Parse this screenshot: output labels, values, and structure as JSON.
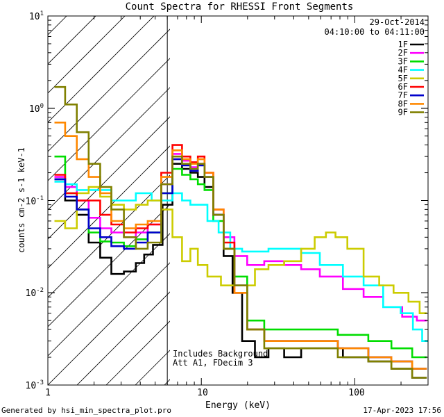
{
  "title": "Count Spectra for RHESSI Front Segments",
  "date": "29-Oct-2014",
  "time_range": "04:10:00 to 04:11:00",
  "footer_left": "Generated by hsi_min_spectra_plot.pro",
  "footer_right": "17-Apr-2023 17:56",
  "annotation_line1": "Includes Background",
  "annotation_line2": "Att A1, FDecim 3",
  "chart_data": {
    "type": "line",
    "title": "Count Spectra for RHESSI Front Segments",
    "xlabel": "Energy (keV)",
    "ylabel": "counts cm-2 s-1 keV-1",
    "xscale": "log",
    "yscale": "log",
    "xlim": [
      1,
      300
    ],
    "ylim": [
      0.001,
      10
    ],
    "x_tick_labels": [
      {
        "value": 1,
        "label": "1"
      },
      {
        "value": 10,
        "label": "10"
      },
      {
        "value": 100,
        "label": "100"
      }
    ],
    "y_tick_labels": [
      {
        "value": 0.001,
        "base": "10",
        "exp": "-3"
      },
      {
        "value": 0.01,
        "base": "10",
        "exp": "-2"
      },
      {
        "value": 0.1,
        "base": "10",
        "exp": "-1"
      },
      {
        "value": 1,
        "base": "10",
        "exp": "0"
      },
      {
        "value": 10,
        "base": "10",
        "exp": "1"
      }
    ],
    "excluded_region": {
      "from": 1,
      "to": 6,
      "style": "hatched"
    },
    "legend_position": "top-right",
    "series": [
      {
        "name": "1F",
        "color": "#000000",
        "points": [
          [
            1.2,
            0.17
          ],
          [
            1.4,
            0.1
          ],
          [
            1.7,
            0.07
          ],
          [
            2.0,
            0.035
          ],
          [
            2.4,
            0.024
          ],
          [
            2.8,
            0.016
          ],
          [
            3.5,
            0.017
          ],
          [
            4.0,
            0.021
          ],
          [
            4.5,
            0.026
          ],
          [
            5.2,
            0.033
          ],
          [
            6.0,
            0.09
          ],
          [
            7.0,
            0.25
          ],
          [
            8.0,
            0.22
          ],
          [
            9.0,
            0.2
          ],
          [
            10.0,
            0.18
          ],
          [
            11.0,
            0.14
          ],
          [
            13.0,
            0.07
          ],
          [
            15.0,
            0.025
          ],
          [
            17.0,
            0.01
          ],
          [
            20.0,
            0.003
          ],
          [
            25.0,
            0.002
          ],
          [
            30.0,
            0.0025
          ],
          [
            40.0,
            0.002
          ],
          [
            50.0,
            0.0025
          ],
          [
            70.0,
            0.0025
          ],
          [
            100.0,
            0.002
          ],
          [
            150.0,
            0.0018
          ],
          [
            200.0,
            0.0015
          ],
          [
            280.0,
            0.0012
          ]
        ]
      },
      {
        "name": "2F",
        "color": "#ff00ff",
        "points": [
          [
            1.2,
            0.18
          ],
          [
            1.4,
            0.14
          ],
          [
            1.7,
            0.1
          ],
          [
            2.0,
            0.065
          ],
          [
            2.4,
            0.05
          ],
          [
            2.8,
            0.045
          ],
          [
            3.5,
            0.04
          ],
          [
            4.0,
            0.045
          ],
          [
            5.0,
            0.055
          ],
          [
            6.0,
            0.15
          ],
          [
            7.0,
            0.32
          ],
          [
            8.0,
            0.27
          ],
          [
            9.0,
            0.23
          ],
          [
            10.0,
            0.25
          ],
          [
            11.0,
            0.2
          ],
          [
            13.0,
            0.08
          ],
          [
            15.0,
            0.04
          ],
          [
            18.0,
            0.025
          ],
          [
            22.0,
            0.02
          ],
          [
            30.0,
            0.022
          ],
          [
            40.0,
            0.02
          ],
          [
            50.0,
            0.018
          ],
          [
            70.0,
            0.015
          ],
          [
            100.0,
            0.011
          ],
          [
            130.0,
            0.009
          ],
          [
            180.0,
            0.007
          ],
          [
            230.0,
            0.0055
          ],
          [
            280.0,
            0.005
          ]
        ]
      },
      {
        "name": "3F",
        "color": "#00dd00",
        "points": [
          [
            1.2,
            0.3
          ],
          [
            1.4,
            0.12
          ],
          [
            1.7,
            0.08
          ],
          [
            2.0,
            0.045
          ],
          [
            2.4,
            0.036
          ],
          [
            2.8,
            0.035
          ],
          [
            3.5,
            0.032
          ],
          [
            4.0,
            0.038
          ],
          [
            5.0,
            0.045
          ],
          [
            6.0,
            0.12
          ],
          [
            7.0,
            0.22
          ],
          [
            8.0,
            0.19
          ],
          [
            9.0,
            0.17
          ],
          [
            10.0,
            0.15
          ],
          [
            11.0,
            0.13
          ],
          [
            13.0,
            0.06
          ],
          [
            15.0,
            0.03
          ],
          [
            18.0,
            0.015
          ],
          [
            22.0,
            0.005
          ],
          [
            30.0,
            0.004
          ],
          [
            40.0,
            0.004
          ],
          [
            60.0,
            0.004
          ],
          [
            100.0,
            0.0035
          ],
          [
            150.0,
            0.003
          ],
          [
            200.0,
            0.0025
          ],
          [
            280.0,
            0.002
          ]
        ]
      },
      {
        "name": "4F",
        "color": "#00ffff",
        "points": [
          [
            1.2,
            0.16
          ],
          [
            1.4,
            0.15
          ],
          [
            1.7,
            0.13
          ],
          [
            2.0,
            0.13
          ],
          [
            2.4,
            0.13
          ],
          [
            2.8,
            0.1
          ],
          [
            3.5,
            0.1
          ],
          [
            4.0,
            0.12
          ],
          [
            4.5,
            0.12
          ],
          [
            5.0,
            0.1
          ],
          [
            6.0,
            0.1
          ],
          [
            7.0,
            0.12
          ],
          [
            8.0,
            0.1
          ],
          [
            9.0,
            0.09
          ],
          [
            10.0,
            0.09
          ],
          [
            12.0,
            0.06
          ],
          [
            14.0,
            0.045
          ],
          [
            17.0,
            0.03
          ],
          [
            20.0,
            0.028
          ],
          [
            25.0,
            0.028
          ],
          [
            30.0,
            0.03
          ],
          [
            40.0,
            0.03
          ],
          [
            50.0,
            0.027
          ],
          [
            70.0,
            0.02
          ],
          [
            100.0,
            0.015
          ],
          [
            130.0,
            0.012
          ],
          [
            180.0,
            0.007
          ],
          [
            220.0,
            0.006
          ],
          [
            260.0,
            0.004
          ],
          [
            290.0,
            0.003
          ]
        ]
      },
      {
        "name": "5F",
        "color": "#cccc00",
        "points": [
          [
            1.2,
            0.06
          ],
          [
            1.4,
            0.05
          ],
          [
            1.7,
            0.12
          ],
          [
            2.0,
            0.14
          ],
          [
            2.4,
            0.11
          ],
          [
            2.8,
            0.09
          ],
          [
            3.5,
            0.08
          ],
          [
            4.0,
            0.09
          ],
          [
            5.0,
            0.1
          ],
          [
            6.0,
            0.08
          ],
          [
            7.0,
            0.04
          ],
          [
            8.0,
            0.022
          ],
          [
            9.0,
            0.03
          ],
          [
            10.0,
            0.02
          ],
          [
            12.0,
            0.015
          ],
          [
            15.0,
            0.012
          ],
          [
            20.0,
            0.012
          ],
          [
            25.0,
            0.018
          ],
          [
            30.0,
            0.02
          ],
          [
            40.0,
            0.022
          ],
          [
            50.0,
            0.03
          ],
          [
            60.0,
            0.04
          ],
          [
            70.0,
            0.045
          ],
          [
            80.0,
            0.04
          ],
          [
            100.0,
            0.03
          ],
          [
            130.0,
            0.015
          ],
          [
            160.0,
            0.012
          ],
          [
            200.0,
            0.01
          ],
          [
            250.0,
            0.008
          ],
          [
            280.0,
            0.006
          ]
        ]
      },
      {
        "name": "6F",
        "color": "#ff0000",
        "points": [
          [
            1.2,
            0.19
          ],
          [
            1.4,
            0.12
          ],
          [
            1.7,
            0.1
          ],
          [
            2.0,
            0.1
          ],
          [
            2.4,
            0.07
          ],
          [
            2.8,
            0.055
          ],
          [
            3.5,
            0.045
          ],
          [
            4.0,
            0.05
          ],
          [
            5.0,
            0.055
          ],
          [
            6.0,
            0.2
          ],
          [
            7.0,
            0.4
          ],
          [
            8.0,
            0.3
          ],
          [
            9.0,
            0.26
          ],
          [
            10.0,
            0.3
          ],
          [
            11.0,
            0.2
          ],
          [
            13.0,
            0.08
          ],
          [
            15.0,
            0.035
          ],
          [
            18.0,
            0.01
          ],
          [
            22.0,
            0.004
          ],
          [
            30.0,
            0.003
          ],
          [
            40.0,
            0.003
          ],
          [
            60.0,
            0.003
          ],
          [
            100.0,
            0.0025
          ],
          [
            150.0,
            0.002
          ],
          [
            200.0,
            0.0018
          ],
          [
            280.0,
            0.0015
          ]
        ]
      },
      {
        "name": "7F",
        "color": "#0000cc",
        "points": [
          [
            1.2,
            0.17
          ],
          [
            1.4,
            0.11
          ],
          [
            1.7,
            0.08
          ],
          [
            2.0,
            0.05
          ],
          [
            2.4,
            0.04
          ],
          [
            2.8,
            0.032
          ],
          [
            3.5,
            0.03
          ],
          [
            4.0,
            0.035
          ],
          [
            5.0,
            0.045
          ],
          [
            6.0,
            0.12
          ],
          [
            7.0,
            0.28
          ],
          [
            8.0,
            0.24
          ],
          [
            9.0,
            0.21
          ],
          [
            10.0,
            0.24
          ],
          [
            11.0,
            0.18
          ],
          [
            13.0,
            0.07
          ],
          [
            15.0,
            0.03
          ],
          [
            18.0,
            0.012
          ],
          [
            22.0,
            0.004
          ],
          [
            30.0,
            0.003
          ],
          [
            40.0,
            0.003
          ],
          [
            60.0,
            0.003
          ],
          [
            100.0,
            0.0025
          ],
          [
            150.0,
            0.002
          ],
          [
            200.0,
            0.0018
          ],
          [
            280.0,
            0.0015
          ]
        ]
      },
      {
        "name": "8F",
        "color": "#ff8800",
        "points": [
          [
            1.2,
            0.7
          ],
          [
            1.4,
            0.5
          ],
          [
            1.7,
            0.28
          ],
          [
            2.0,
            0.18
          ],
          [
            2.4,
            0.12
          ],
          [
            2.8,
            0.06
          ],
          [
            3.5,
            0.05
          ],
          [
            4.0,
            0.055
          ],
          [
            5.0,
            0.06
          ],
          [
            6.0,
            0.18
          ],
          [
            7.0,
            0.35
          ],
          [
            8.0,
            0.28
          ],
          [
            9.0,
            0.25
          ],
          [
            10.0,
            0.28
          ],
          [
            11.0,
            0.2
          ],
          [
            13.0,
            0.08
          ],
          [
            15.0,
            0.03
          ],
          [
            18.0,
            0.01
          ],
          [
            22.0,
            0.004
          ],
          [
            30.0,
            0.003
          ],
          [
            40.0,
            0.003
          ],
          [
            60.0,
            0.003
          ],
          [
            100.0,
            0.0025
          ],
          [
            150.0,
            0.002
          ],
          [
            200.0,
            0.0018
          ],
          [
            280.0,
            0.0015
          ]
        ]
      },
      {
        "name": "9F",
        "color": "#808000",
        "points": [
          [
            1.2,
            1.7
          ],
          [
            1.4,
            1.1
          ],
          [
            1.7,
            0.55
          ],
          [
            2.0,
            0.25
          ],
          [
            2.4,
            0.14
          ],
          [
            2.8,
            0.08
          ],
          [
            3.5,
            0.04
          ],
          [
            4.0,
            0.03
          ],
          [
            5.0,
            0.035
          ],
          [
            6.0,
            0.15
          ],
          [
            7.0,
            0.3
          ],
          [
            8.0,
            0.25
          ],
          [
            9.0,
            0.22
          ],
          [
            10.0,
            0.25
          ],
          [
            11.0,
            0.18
          ],
          [
            13.0,
            0.07
          ],
          [
            15.0,
            0.03
          ],
          [
            18.0,
            0.012
          ],
          [
            22.0,
            0.004
          ],
          [
            30.0,
            0.0025
          ],
          [
            40.0,
            0.0025
          ],
          [
            60.0,
            0.0025
          ],
          [
            100.0,
            0.002
          ],
          [
            150.0,
            0.0018
          ],
          [
            200.0,
            0.0015
          ],
          [
            280.0,
            0.0012
          ]
        ]
      }
    ]
  }
}
